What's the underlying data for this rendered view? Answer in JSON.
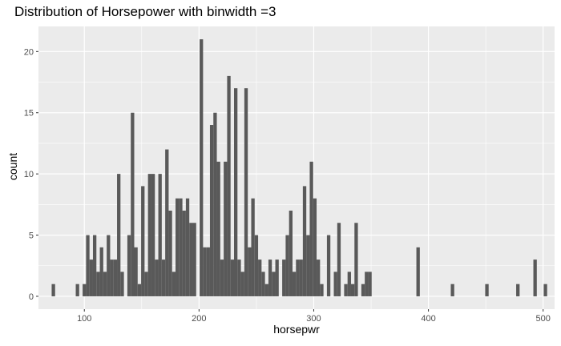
{
  "chart_data": {
    "type": "histogram",
    "title": "Distribution of Horsepower with binwidth =3",
    "xlabel": "horsepwr",
    "ylabel": "count",
    "binwidth": 3,
    "xlim": [
      60,
      510
    ],
    "ylim": [
      -1.05,
      22.05
    ],
    "x_ticks": [
      100,
      200,
      300,
      400,
      500
    ],
    "y_ticks": [
      0,
      5,
      10,
      15,
      20
    ],
    "grid": true,
    "colors": {
      "bar": "#595959",
      "panel": "#ebebeb",
      "grid": "#ffffff"
    },
    "bins": [
      {
        "x": 73,
        "count": 1
      },
      {
        "x": 94,
        "count": 1
      },
      {
        "x": 100,
        "count": 1
      },
      {
        "x": 103,
        "count": 5
      },
      {
        "x": 106,
        "count": 3
      },
      {
        "x": 109,
        "count": 5
      },
      {
        "x": 112,
        "count": 2
      },
      {
        "x": 115,
        "count": 4
      },
      {
        "x": 118,
        "count": 2
      },
      {
        "x": 121,
        "count": 5
      },
      {
        "x": 124,
        "count": 3
      },
      {
        "x": 127,
        "count": 3
      },
      {
        "x": 130,
        "count": 10
      },
      {
        "x": 133,
        "count": 2
      },
      {
        "x": 136,
        "count": 0
      },
      {
        "x": 139,
        "count": 5
      },
      {
        "x": 142,
        "count": 15
      },
      {
        "x": 145,
        "count": 4
      },
      {
        "x": 148,
        "count": 1
      },
      {
        "x": 151,
        "count": 9
      },
      {
        "x": 154,
        "count": 2
      },
      {
        "x": 157,
        "count": 10
      },
      {
        "x": 160,
        "count": 10
      },
      {
        "x": 163,
        "count": 3
      },
      {
        "x": 166,
        "count": 10
      },
      {
        "x": 169,
        "count": 3
      },
      {
        "x": 172,
        "count": 12
      },
      {
        "x": 175,
        "count": 7
      },
      {
        "x": 178,
        "count": 2
      },
      {
        "x": 181,
        "count": 8
      },
      {
        "x": 184,
        "count": 8
      },
      {
        "x": 187,
        "count": 7
      },
      {
        "x": 190,
        "count": 8
      },
      {
        "x": 193,
        "count": 6
      },
      {
        "x": 196,
        "count": 6
      },
      {
        "x": 199,
        "count": 0
      },
      {
        "x": 202,
        "count": 21
      },
      {
        "x": 205,
        "count": 4
      },
      {
        "x": 208,
        "count": 4
      },
      {
        "x": 211,
        "count": 14
      },
      {
        "x": 214,
        "count": 15
      },
      {
        "x": 217,
        "count": 11
      },
      {
        "x": 220,
        "count": 3
      },
      {
        "x": 223,
        "count": 11
      },
      {
        "x": 226,
        "count": 18
      },
      {
        "x": 229,
        "count": 3
      },
      {
        "x": 232,
        "count": 17
      },
      {
        "x": 235,
        "count": 3
      },
      {
        "x": 238,
        "count": 2
      },
      {
        "x": 241,
        "count": 17
      },
      {
        "x": 244,
        "count": 4
      },
      {
        "x": 247,
        "count": 8
      },
      {
        "x": 250,
        "count": 5
      },
      {
        "x": 253,
        "count": 3
      },
      {
        "x": 256,
        "count": 2
      },
      {
        "x": 259,
        "count": 1
      },
      {
        "x": 262,
        "count": 3
      },
      {
        "x": 265,
        "count": 2
      },
      {
        "x": 268,
        "count": 3
      },
      {
        "x": 271,
        "count": 0
      },
      {
        "x": 274,
        "count": 3
      },
      {
        "x": 277,
        "count": 5
      },
      {
        "x": 280,
        "count": 7
      },
      {
        "x": 283,
        "count": 2
      },
      {
        "x": 286,
        "count": 3
      },
      {
        "x": 289,
        "count": 3
      },
      {
        "x": 292,
        "count": 9
      },
      {
        "x": 295,
        "count": 5
      },
      {
        "x": 298,
        "count": 11
      },
      {
        "x": 301,
        "count": 8
      },
      {
        "x": 304,
        "count": 3
      },
      {
        "x": 307,
        "count": 1
      },
      {
        "x": 310,
        "count": 0
      },
      {
        "x": 313,
        "count": 5
      },
      {
        "x": 316,
        "count": 0
      },
      {
        "x": 319,
        "count": 2
      },
      {
        "x": 322,
        "count": 6
      },
      {
        "x": 325,
        "count": 0
      },
      {
        "x": 328,
        "count": 1
      },
      {
        "x": 331,
        "count": 2
      },
      {
        "x": 334,
        "count": 1
      },
      {
        "x": 337,
        "count": 6
      },
      {
        "x": 340,
        "count": 0
      },
      {
        "x": 343,
        "count": 1
      },
      {
        "x": 346,
        "count": 2
      },
      {
        "x": 349,
        "count": 2
      },
      {
        "x": 391,
        "count": 4
      },
      {
        "x": 421,
        "count": 1
      },
      {
        "x": 451,
        "count": 1
      },
      {
        "x": 478,
        "count": 1
      },
      {
        "x": 493,
        "count": 3
      },
      {
        "x": 502,
        "count": 1
      }
    ]
  }
}
